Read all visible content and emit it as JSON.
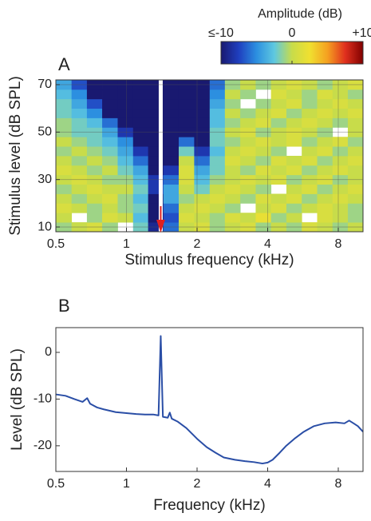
{
  "chart_data": [
    {
      "type": "heatmap",
      "panel": "A",
      "xlabel": "Stimulus frequency (kHz)",
      "ylabel": "Stimulus level (dB SPL)",
      "xscale": "log",
      "xlim": [
        0.5,
        10.2
      ],
      "ylim": [
        8,
        72
      ],
      "xticks": [
        0.5,
        1,
        2,
        4,
        8
      ],
      "yticks": [
        10,
        30,
        50,
        70
      ],
      "grid": true,
      "x": [
        0.54,
        0.63,
        0.73,
        0.85,
        0.99,
        1.15,
        1.33,
        1.55,
        1.8,
        2.1,
        2.44,
        2.83,
        3.3,
        3.83,
        4.46,
        5.18,
        6.03,
        7.01,
        8.15,
        9.47
      ],
      "y": [
        10,
        14,
        18,
        22,
        26,
        30,
        34,
        38,
        42,
        46,
        50,
        54,
        58,
        62,
        66,
        70
      ],
      "z": [
        [
          -1,
          0,
          1,
          -1,
          null,
          -2,
          -9,
          -6,
          0,
          1,
          -1,
          0,
          1,
          -1,
          0,
          -1,
          1,
          0,
          -1,
          0
        ],
        [
          0,
          null,
          -1,
          1,
          0,
          -3,
          -10,
          -7,
          1,
          0,
          -1,
          1,
          0,
          2,
          -1,
          0,
          null,
          1,
          0,
          -1
        ],
        [
          1,
          0,
          -1,
          0,
          -1,
          -2,
          -10,
          -6,
          0,
          1,
          0,
          -1,
          null,
          0,
          1,
          -1,
          0,
          1,
          0,
          -1
        ],
        [
          0,
          -1,
          0,
          1,
          -1,
          -3,
          -10,
          -4,
          -1,
          0,
          1,
          0,
          -1,
          1,
          0,
          1,
          -1,
          0,
          1,
          0
        ],
        [
          -1,
          0,
          1,
          0,
          0,
          -2,
          -8,
          -4,
          0,
          -2,
          0,
          1,
          0,
          -1,
          null,
          0,
          1,
          -1,
          0,
          1
        ],
        [
          0,
          1,
          0,
          -1,
          -1,
          -3,
          -8,
          -6,
          1,
          -3,
          -1,
          0,
          1,
          0,
          1,
          -1,
          0,
          1,
          -1,
          0
        ],
        [
          1,
          0,
          -1,
          0,
          -2,
          -4,
          -10,
          -8,
          1,
          -4,
          -2,
          0,
          -1,
          1,
          0,
          1,
          -1,
          0,
          1,
          0
        ],
        [
          0,
          -1,
          0,
          -1,
          -3,
          -6,
          -10,
          -10,
          0,
          -6,
          -2,
          1,
          0,
          -1,
          1,
          0,
          1,
          -1,
          0,
          1
        ],
        [
          -1,
          0,
          -1,
          -2,
          -4,
          -8,
          -10,
          -10,
          -2,
          -8,
          -3,
          0,
          1,
          0,
          -1,
          null,
          0,
          1,
          -1,
          0
        ],
        [
          0,
          -1,
          -2,
          -3,
          -5,
          -10,
          -10,
          -10,
          -6,
          -10,
          -2,
          -1,
          0,
          1,
          0,
          1,
          -1,
          0,
          1,
          -1
        ],
        [
          -1,
          -2,
          -2,
          -4,
          -8,
          -10,
          -10,
          -10,
          -10,
          -10,
          -2,
          0,
          1,
          -1,
          0,
          1,
          0,
          -1,
          null,
          0
        ],
        [
          -1,
          -2,
          -3,
          -6,
          -10,
          -10,
          -10,
          -10,
          -10,
          -10,
          -3,
          -1,
          0,
          1,
          -1,
          0,
          1,
          0,
          -1,
          0
        ],
        [
          -2,
          -3,
          -5,
          -10,
          -10,
          -10,
          -10,
          -10,
          -10,
          -10,
          -3,
          0,
          -1,
          0,
          1,
          -1,
          0,
          1,
          0,
          1
        ],
        [
          -2,
          -4,
          -7,
          -10,
          -10,
          -10,
          -10,
          -10,
          -10,
          -10,
          -4,
          -1,
          null,
          -1,
          0,
          1,
          -1,
          0,
          1,
          0
        ],
        [
          -3,
          -5,
          -10,
          -10,
          -10,
          -10,
          -10,
          -10,
          -10,
          -10,
          -5,
          0,
          -1,
          null,
          1,
          0,
          -1,
          1,
          0,
          -1
        ],
        [
          -4,
          -7,
          -10,
          -10,
          -10,
          -10,
          -10,
          -10,
          -10,
          -10,
          -6,
          -1,
          0,
          -1,
          0,
          1,
          0,
          -1,
          0,
          1
        ]
      ],
      "probe_x": 1.4,
      "probe_color": "#e02020",
      "colorbar": {
        "title": "Amplitude (dB)",
        "clim": [
          -10,
          10
        ],
        "ticks": [
          {
            "value": -10,
            "label": "≤-10"
          },
          0,
          {
            "value": 10,
            "label": "+10"
          }
        ],
        "colormap": [
          "#191970",
          "#1f3fbf",
          "#2c8fe0",
          "#5ec8e0",
          "#c8dc4a",
          "#f0e030",
          "#f5a020",
          "#e0301e",
          "#800000"
        ]
      }
    },
    {
      "type": "line",
      "panel": "B",
      "xlabel": "Frequency (kHz)",
      "ylabel": "Level (dB SPL)",
      "xscale": "log",
      "xlim": [
        0.5,
        10.2
      ],
      "ylim": [
        -25.5,
        5.3
      ],
      "xticks": [
        0.5,
        1,
        2,
        4,
        8
      ],
      "yticks": [
        -20,
        -10,
        0
      ],
      "color": "#2a4ea6",
      "x": [
        0.5,
        0.55,
        0.6,
        0.65,
        0.68,
        0.7,
        0.75,
        0.8,
        0.9,
        1.0,
        1.1,
        1.2,
        1.3,
        1.37,
        1.4,
        1.43,
        1.5,
        1.53,
        1.56,
        1.65,
        1.8,
        2.0,
        2.2,
        2.4,
        2.6,
        2.9,
        3.2,
        3.5,
        3.8,
        4.0,
        4.2,
        4.5,
        4.8,
        5.2,
        5.7,
        6.3,
        7.0,
        7.8,
        8.5,
        8.9,
        9.3,
        9.7,
        10.2
      ],
      "values": [
        -9,
        -9.3,
        -10,
        -10.6,
        -9.8,
        -11,
        -11.8,
        -12.2,
        -12.8,
        -13,
        -13.2,
        -13.3,
        -13.3,
        -13.5,
        3.5,
        -13.8,
        -14,
        -12.9,
        -14.2,
        -14.8,
        -16.2,
        -18.5,
        -20.3,
        -21.5,
        -22.5,
        -23,
        -23.3,
        -23.5,
        -23.8,
        -23.6,
        -23,
        -21.5,
        -20,
        -18.5,
        -17,
        -15.8,
        -15.2,
        -15,
        -15.2,
        -14.6,
        -15.2,
        -15.8,
        -17
      ]
    }
  ]
}
